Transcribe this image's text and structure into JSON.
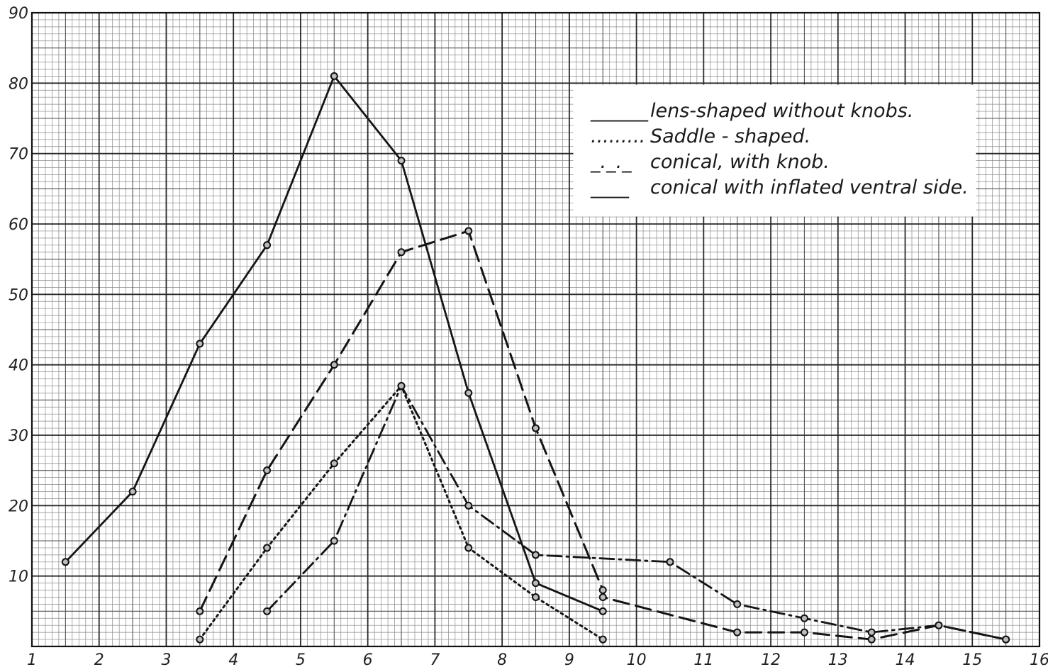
{
  "chart_data": {
    "type": "line",
    "title": "",
    "xlabel": "",
    "ylabel": "",
    "xlim": [
      1,
      16
    ],
    "ylim": [
      0,
      90
    ],
    "x_ticks": [
      1,
      2,
      3,
      4,
      5,
      6,
      7,
      8,
      9,
      10,
      11,
      12,
      13,
      14,
      15,
      16
    ],
    "y_ticks": [
      10,
      20,
      30,
      40,
      50,
      60,
      70,
      80,
      90
    ],
    "grid": true,
    "legend_position": "top-right",
    "series": [
      {
        "name": "lens-shaped without knobs.",
        "line_style": "solid",
        "legend_sample": "______",
        "points": [
          [
            1.5,
            12
          ],
          [
            2.5,
            22
          ],
          [
            3.5,
            43
          ],
          [
            4.5,
            57
          ],
          [
            5.5,
            81
          ],
          [
            6.5,
            69
          ],
          [
            7.5,
            36
          ],
          [
            8.5,
            9
          ],
          [
            9.5,
            5
          ]
        ]
      },
      {
        "name": "Saddle - shaped.",
        "line_style": "dotted",
        "legend_sample": ".........",
        "points": [
          [
            3.5,
            1
          ],
          [
            4.5,
            14
          ],
          [
            5.5,
            26
          ],
          [
            6.5,
            37
          ],
          [
            7.5,
            14
          ],
          [
            8.5,
            7
          ],
          [
            9.5,
            1
          ]
        ]
      },
      {
        "name": "conical, with knob.",
        "line_style": "dashdot",
        "legend_sample": "_._._",
        "points": [
          [
            4.5,
            5
          ],
          [
            5.5,
            15
          ],
          [
            6.5,
            37
          ],
          [
            7.5,
            20
          ],
          [
            8.5,
            13
          ],
          [
            10.5,
            12
          ],
          [
            11.5,
            6
          ],
          [
            12.5,
            4
          ],
          [
            13.5,
            2
          ],
          [
            14.5,
            3
          ],
          [
            15.5,
            1
          ]
        ]
      },
      {
        "name": "conical with inflated ventral side.",
        "line_style": "dashed",
        "legend_sample": "____",
        "points": [
          [
            3.5,
            5
          ],
          [
            4.5,
            25
          ],
          [
            5.5,
            40
          ],
          [
            6.5,
            56
          ],
          [
            7.5,
            59
          ],
          [
            8.5,
            31
          ],
          [
            9.5,
            8
          ],
          [
            9.5,
            7
          ],
          [
            11.5,
            2
          ],
          [
            12.5,
            2
          ],
          [
            13.5,
            1
          ],
          [
            14.5,
            3
          ],
          [
            15.5,
            1
          ]
        ]
      }
    ]
  }
}
